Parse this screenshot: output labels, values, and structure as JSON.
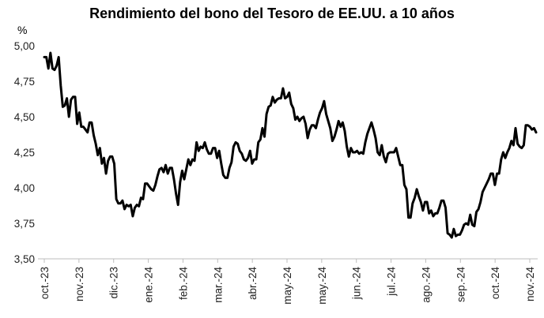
{
  "chart_data": {
    "type": "line",
    "title": "Rendimiento del bono del Tesoro de EE.UU. a 10 años",
    "y_unit": "%",
    "xlabel": "",
    "ylabel": "",
    "ylim": [
      3.5,
      5.0
    ],
    "y_ticks": [
      "3,50",
      "3,75",
      "4,00",
      "4,25",
      "4,50",
      "4,75",
      "5,00"
    ],
    "x_ticks": [
      "oct.-23",
      "nov.-23",
      "dic.-23",
      "ene.-24",
      "feb.-24",
      "mar.-24",
      "abr.-24",
      "may.-24",
      "may.-24",
      "jun.-24",
      "jul.-24",
      "ago.-24",
      "sep.-24",
      "oct.-24",
      "nov.-24"
    ],
    "grid": false,
    "legend": "none",
    "series": [
      {
        "color": "#000000",
        "values": [
          4.92,
          4.92,
          4.84,
          4.95,
          4.84,
          4.83,
          4.86,
          4.92,
          4.72,
          4.57,
          4.58,
          4.63,
          4.5,
          4.62,
          4.64,
          4.64,
          4.45,
          4.53,
          4.43,
          4.43,
          4.41,
          4.39,
          4.46,
          4.46,
          4.37,
          4.31,
          4.23,
          4.28,
          4.17,
          4.21,
          4.1,
          4.19,
          4.22,
          4.22,
          4.17,
          3.92,
          3.89,
          3.89,
          3.91,
          3.85,
          3.88,
          3.87,
          3.88,
          3.8,
          3.86,
          3.88,
          3.87,
          3.93,
          3.92,
          4.03,
          4.03,
          4.01,
          3.99,
          3.98,
          4.02,
          4.08,
          4.13,
          4.14,
          4.11,
          4.16,
          4.1,
          4.14,
          4.14,
          4.06,
          3.96,
          3.88,
          4.04,
          4.12,
          4.06,
          4.13,
          4.2,
          4.16,
          4.2,
          4.19,
          4.32,
          4.26,
          4.29,
          4.28,
          4.32,
          4.27,
          4.24,
          4.24,
          4.28,
          4.28,
          4.21,
          4.26,
          4.17,
          4.09,
          4.07,
          4.07,
          4.14,
          4.18,
          4.29,
          4.32,
          4.31,
          4.26,
          4.24,
          4.2,
          4.19,
          4.21,
          4.26,
          4.17,
          4.2,
          4.2,
          4.32,
          4.34,
          4.42,
          4.36,
          4.52,
          4.57,
          4.58,
          4.64,
          4.6,
          4.62,
          4.63,
          4.63,
          4.7,
          4.63,
          4.64,
          4.67,
          4.59,
          4.56,
          4.48,
          4.5,
          4.47,
          4.49,
          4.5,
          4.45,
          4.35,
          4.41,
          4.44,
          4.44,
          4.42,
          4.48,
          4.53,
          4.56,
          4.61,
          4.52,
          4.47,
          4.42,
          4.33,
          4.36,
          4.41,
          4.47,
          4.43,
          4.46,
          4.4,
          4.29,
          4.22,
          4.28,
          4.25,
          4.25,
          4.26,
          4.24,
          4.25,
          4.24,
          4.32,
          4.38,
          4.42,
          4.46,
          4.41,
          4.35,
          4.25,
          4.23,
          4.3,
          4.22,
          4.18,
          4.24,
          4.25,
          4.25,
          4.25,
          4.28,
          4.22,
          4.16,
          4.16,
          4.02,
          3.99,
          3.79,
          3.79,
          3.89,
          3.93,
          3.99,
          3.94,
          3.9,
          3.84,
          3.9,
          3.9,
          3.82,
          3.84,
          3.8,
          3.82,
          3.82,
          3.86,
          3.91,
          3.91,
          3.86,
          3.68,
          3.67,
          3.65,
          3.71,
          3.66,
          3.67,
          3.67,
          3.7,
          3.74,
          3.75,
          3.74,
          3.81,
          3.74,
          3.73,
          3.83,
          3.85,
          3.9,
          3.97,
          4.0,
          4.03,
          4.06,
          4.1,
          4.1,
          4.02,
          4.1,
          4.1,
          4.2,
          4.25,
          4.21,
          4.25,
          4.28,
          4.33,
          4.3,
          4.42,
          4.31,
          4.29,
          4.28,
          4.3,
          4.44,
          4.44,
          4.43,
          4.41,
          4.42,
          4.39
        ]
      }
    ]
  }
}
